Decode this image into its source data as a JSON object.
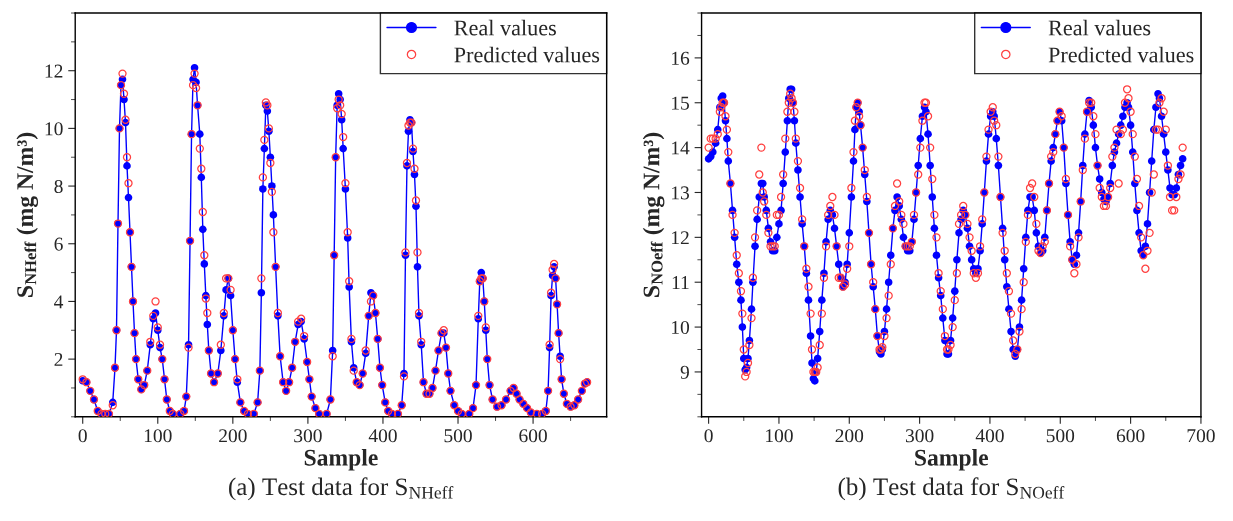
{
  "chart_data": [
    {
      "type": "line",
      "title": "(a) Test data for S$_{NHeff}$",
      "xlabel": "Sample",
      "ylabel": "S$_{NHeff}$ (mg N/m³)",
      "xlim": [
        -10,
        698
      ],
      "xticks": [
        0,
        100,
        200,
        300,
        400,
        500,
        600
      ],
      "ylim": [
        0,
        14
      ],
      "yticks": [
        2,
        4,
        6,
        8,
        10,
        12
      ],
      "grid": false,
      "legend": "top right",
      "marker": "circle",
      "x": [
        0,
        5,
        10,
        15,
        20,
        25,
        30,
        35,
        40,
        43,
        45,
        47,
        49,
        51,
        53,
        55,
        57,
        59,
        61,
        63,
        65,
        67,
        69,
        71,
        74,
        78,
        82,
        86,
        90,
        94,
        97,
        100,
        103,
        106,
        109,
        112,
        116,
        120,
        130,
        135,
        138,
        141,
        143,
        145,
        147,
        149,
        151,
        153,
        156,
        158,
        160,
        162,
        164,
        166,
        168,
        171,
        175,
        180,
        184,
        188,
        191,
        194,
        197,
        200,
        203,
        206,
        210,
        215,
        220,
        228,
        233,
        236,
        238,
        240,
        242,
        244,
        246,
        248,
        250,
        252,
        254,
        257,
        260,
        263,
        267,
        271,
        275,
        279,
        283,
        287,
        291,
        295,
        299,
        302,
        305,
        310,
        315,
        325,
        330,
        333,
        335,
        337,
        339,
        341,
        343,
        345,
        347,
        350,
        353,
        355,
        358,
        361,
        365,
        369,
        373,
        377,
        381,
        384,
        387,
        390,
        393,
        396,
        399,
        403,
        407,
        412,
        420,
        425,
        428,
        430,
        432,
        434,
        436,
        438,
        440,
        442,
        444,
        446,
        448,
        451,
        454,
        458,
        462,
        466,
        470,
        474,
        478,
        481,
        484,
        487,
        490,
        495,
        500,
        505,
        515,
        520,
        524,
        527,
        529,
        531,
        533,
        535,
        537,
        539,
        542,
        546,
        552,
        558,
        564,
        570,
        574,
        578,
        582,
        587,
        592,
        597,
        605,
        612,
        617,
        620,
        622,
        624,
        626,
        628,
        630,
        632,
        634,
        636,
        638,
        641,
        645,
        650,
        655,
        660,
        665,
        669,
        672
      ],
      "series": [
        {
          "name": "Real values",
          "color": "#0000ff",
          "values": [
            1.25,
            1.2,
            0.9,
            0.6,
            0.2,
            0.1,
            0.1,
            0.1,
            0.5,
            1.7,
            3.0,
            6.7,
            10.0,
            11.5,
            11.7,
            11.0,
            10.2,
            8.7,
            7.6,
            6.4,
            5.2,
            4.0,
            2.9,
            2.0,
            1.3,
            0.95,
            1.1,
            1.6,
            2.5,
            3.4,
            3.6,
            3.0,
            2.4,
            2.0,
            1.3,
            0.6,
            0.2,
            0.1,
            0.1,
            0.2,
            0.7,
            2.5,
            6.1,
            9.8,
            11.7,
            12.1,
            11.6,
            10.8,
            9.8,
            8.3,
            6.5,
            5.3,
            4.2,
            3.2,
            2.3,
            1.5,
            1.2,
            1.5,
            2.3,
            3.5,
            4.4,
            4.8,
            4.2,
            3.0,
            2.0,
            1.2,
            0.5,
            0.2,
            0.1,
            0.1,
            0.5,
            1.6,
            4.3,
            7.9,
            9.3,
            10.8,
            10.6,
            9.9,
            9.0,
            8.0,
            7.0,
            5.2,
            3.5,
            2.1,
            1.2,
            0.9,
            1.2,
            1.7,
            2.6,
            3.2,
            3.3,
            2.7,
            1.9,
            1.3,
            0.7,
            0.3,
            0.1,
            0.1,
            0.6,
            2.3,
            5.6,
            9.0,
            10.8,
            11.2,
            11.0,
            10.3,
            9.3,
            7.9,
            6.2,
            4.5,
            2.6,
            1.7,
            1.2,
            1.1,
            1.5,
            2.2,
            3.5,
            4.3,
            4.2,
            3.6,
            2.7,
            1.7,
            1.1,
            0.5,
            0.2,
            0.1,
            0.1,
            0.4,
            1.5,
            5.6,
            8.7,
            9.9,
            10.3,
            10.2,
            9.2,
            8.4,
            7.3,
            5.2,
            3.5,
            2.5,
            1.2,
            0.8,
            0.8,
            1.0,
            1.6,
            2.3,
            2.9,
            2.9,
            2.4,
            1.5,
            0.9,
            0.4,
            0.2,
            0.1,
            0.1,
            0.3,
            1.1,
            3.4,
            4.7,
            5.0,
            4.8,
            4.0,
            3.0,
            2.0,
            1.1,
            0.6,
            0.35,
            0.4,
            0.6,
            0.9,
            1.0,
            0.8,
            0.6,
            0.45,
            0.3,
            0.15,
            0.1,
            0.1,
            0.2,
            0.9,
            2.4,
            4.2,
            4.9,
            5.2,
            4.8,
            3.9,
            2.9,
            2.1,
            1.3,
            0.8,
            0.45,
            0.35,
            0.4,
            0.6,
            0.9,
            1.15,
            1.2
          ]
        },
        {
          "name": "Predicted values",
          "type": "scatter",
          "color": "#ff4040",
          "values": [
            1.3,
            1.2,
            0.9,
            0.6,
            0.2,
            0.1,
            0.1,
            0.1,
            0.4,
            1.7,
            3.0,
            6.7,
            10.0,
            11.5,
            11.9,
            11.2,
            10.3,
            9.0,
            8.1,
            6.4,
            5.2,
            4.0,
            2.9,
            2.0,
            1.3,
            0.95,
            1.1,
            1.6,
            2.6,
            3.5,
            4.0,
            3.1,
            2.5,
            2.0,
            1.3,
            0.6,
            0.2,
            0.1,
            0.1,
            0.2,
            0.7,
            2.4,
            6.1,
            9.8,
            11.5,
            11.9,
            11.4,
            10.8,
            9.3,
            8.6,
            7.1,
            5.6,
            4.1,
            3.6,
            2.3,
            1.5,
            1.2,
            1.5,
            2.5,
            3.6,
            4.8,
            4.8,
            4.4,
            3.0,
            2.0,
            1.3,
            0.5,
            0.2,
            0.1,
            0.1,
            0.5,
            1.6,
            4.8,
            8.3,
            9.6,
            10.9,
            10.8,
            10.0,
            8.8,
            7.8,
            6.4,
            5.2,
            3.6,
            2.1,
            1.2,
            0.9,
            1.2,
            1.7,
            2.6,
            3.3,
            3.4,
            2.8,
            1.9,
            1.3,
            0.7,
            0.3,
            0.1,
            0.1,
            0.6,
            2.1,
            5.6,
            9.0,
            10.7,
            11.0,
            10.8,
            10.5,
            9.7,
            8.1,
            6.4,
            4.7,
            2.7,
            1.6,
            1.2,
            1.1,
            1.5,
            2.3,
            3.5,
            4.0,
            4.2,
            3.6,
            2.7,
            1.7,
            1.1,
            0.5,
            0.2,
            0.1,
            0.1,
            0.4,
            1.4,
            5.7,
            8.8,
            10.1,
            10.2,
            10.2,
            9.3,
            8.6,
            7.5,
            5.7,
            3.6,
            2.6,
            1.2,
            0.8,
            0.8,
            1.0,
            1.6,
            2.3,
            2.9,
            3.0,
            2.4,
            1.5,
            0.9,
            0.4,
            0.2,
            0.1,
            0.1,
            0.3,
            1.1,
            3.5,
            4.7,
            4.8,
            4.8,
            4.0,
            3.1,
            2.0,
            1.1,
            0.6,
            0.35,
            0.4,
            0.6,
            0.9,
            1.0,
            0.8,
            0.6,
            0.45,
            0.3,
            0.15,
            0.1,
            0.1,
            0.2,
            0.9,
            2.5,
            4.3,
            5.1,
            5.3,
            4.8,
            3.9,
            2.9,
            2.0,
            1.3,
            0.8,
            0.45,
            0.35,
            0.4,
            0.6,
            0.9,
            1.15,
            1.2
          ]
        }
      ]
    },
    {
      "type": "line",
      "title": "(b) Test data for S$_{NOeff}$",
      "xlabel": "Sample",
      "ylabel": "S$_{NOeff}$ (mg N/m³)",
      "xlim": [
        -10,
        700
      ],
      "xticks": [
        0,
        100,
        200,
        300,
        400,
        500,
        600,
        700
      ],
      "ylim": [
        8,
        17
      ],
      "yticks": [
        9,
        10,
        11,
        12,
        13,
        14,
        15,
        16
      ],
      "grid": false,
      "legend": "top right",
      "marker": "circle",
      "x": [
        0,
        3,
        6,
        10,
        13,
        16,
        18,
        20,
        22,
        24,
        26,
        28,
        31,
        34,
        37,
        40,
        43,
        46,
        48,
        50,
        52,
        54,
        56,
        58,
        61,
        63,
        66,
        69,
        72,
        75,
        77,
        79,
        82,
        85,
        88,
        91,
        94,
        97,
        100,
        103,
        106,
        109,
        112,
        114,
        116,
        118,
        120,
        122,
        124,
        127,
        130,
        133,
        136,
        139,
        142,
        145,
        147,
        149,
        151,
        153,
        155,
        158,
        161,
        164,
        167,
        170,
        173,
        176,
        179,
        182,
        185,
        188,
        191,
        194,
        197,
        200,
        203,
        206,
        208,
        210,
        212,
        214,
        216,
        219,
        222,
        225,
        228,
        231,
        234,
        237,
        240,
        243,
        245,
        247,
        250,
        253,
        256,
        259,
        262,
        265,
        268,
        271,
        274,
        277,
        280,
        283,
        286,
        289,
        292,
        295,
        298,
        301,
        304,
        307,
        309,
        312,
        315,
        318,
        321,
        324,
        327,
        330,
        333,
        336,
        339,
        341,
        344,
        347,
        350,
        353,
        356,
        359,
        362,
        365,
        368,
        371,
        374,
        377,
        380,
        383,
        386,
        389,
        392,
        395,
        398,
        401,
        404,
        406,
        409,
        412,
        415,
        418,
        421,
        424,
        427,
        430,
        433,
        436,
        439,
        442,
        445,
        448,
        451,
        454,
        457,
        460,
        463,
        466,
        469,
        472,
        475,
        478,
        481,
        484,
        487,
        490,
        493,
        496,
        499,
        502,
        505,
        508,
        511,
        514,
        517,
        520,
        523,
        526,
        529,
        532,
        535,
        538,
        541,
        544,
        547,
        550,
        553,
        556,
        559,
        562,
        565,
        568,
        571,
        574,
        577,
        580,
        583,
        586,
        589,
        592,
        595,
        597,
        600,
        603,
        606,
        609,
        612,
        615,
        618,
        621,
        624,
        627,
        630,
        633,
        636,
        639,
        641,
        644,
        647,
        650,
        653,
        656,
        659,
        662,
        665,
        668,
        671,
        674
      ],
      "series": [
        {
          "name": "Real values",
          "color": "#0000ff",
          "values": [
            13.75,
            13.8,
            13.9,
            14.1,
            14.4,
            14.9,
            15.1,
            15.15,
            15.0,
            14.6,
            14.2,
            13.7,
            13.2,
            12.6,
            12.0,
            11.4,
            11.0,
            10.6,
            10.0,
            9.3,
            9.05,
            9.1,
            9.3,
            9.7,
            10.4,
            11.0,
            11.8,
            12.4,
            12.9,
            13.2,
            13.2,
            12.9,
            12.6,
            12.2,
            11.9,
            11.7,
            11.7,
            12.0,
            12.3,
            12.6,
            13.2,
            13.9,
            14.6,
            15.1,
            15.3,
            15.3,
            15.0,
            14.6,
            14.1,
            13.5,
            12.9,
            12.3,
            11.8,
            11.2,
            10.6,
            9.8,
            9.2,
            8.85,
            8.8,
            9.0,
            9.3,
            9.9,
            10.6,
            11.2,
            11.9,
            12.4,
            12.6,
            12.5,
            12.2,
            11.8,
            11.4,
            11.1,
            10.9,
            11.0,
            11.4,
            12.1,
            12.9,
            13.7,
            14.4,
            14.9,
            15.0,
            14.8,
            14.5,
            14.0,
            13.4,
            12.8,
            12.1,
            11.4,
            10.9,
            10.4,
            9.8,
            9.45,
            9.4,
            9.5,
            9.9,
            10.4,
            11.0,
            11.6,
            12.2,
            12.6,
            12.9,
            12.7,
            12.4,
            12.0,
            11.8,
            11.7,
            11.7,
            11.9,
            12.4,
            13.0,
            13.6,
            14.2,
            14.7,
            14.9,
            14.8,
            14.3,
            13.6,
            12.9,
            12.2,
            11.6,
            11.1,
            10.7,
            10.2,
            9.7,
            9.4,
            9.4,
            9.7,
            10.2,
            10.8,
            11.5,
            12.1,
            12.4,
            12.6,
            12.5,
            12.2,
            11.8,
            11.5,
            11.3,
            11.2,
            11.3,
            11.7,
            12.3,
            13.0,
            13.7,
            14.3,
            14.7,
            14.8,
            14.7,
            14.2,
            13.6,
            12.9,
            12.2,
            11.5,
            10.9,
            10.4,
            9.9,
            9.5,
            9.35,
            9.5,
            10.0,
            10.6,
            11.3,
            12.0,
            12.6,
            12.9,
            12.9,
            12.6,
            12.1,
            11.8,
            11.65,
            11.7,
            12.0,
            12.6,
            13.2,
            13.7,
            14.0,
            14.3,
            14.6,
            14.8,
            14.6,
            14.0,
            13.2,
            12.5,
            11.9,
            11.5,
            11.4,
            11.6,
            12.1,
            12.8,
            13.6,
            14.3,
            14.8,
            15.05,
            14.9,
            14.5,
            14.0,
            13.6,
            13.3,
            13.0,
            12.85,
            12.8,
            12.9,
            13.2,
            13.6,
            13.9,
            14.1,
            14.3,
            14.5,
            14.7,
            14.9,
            15.0,
            14.9,
            14.5,
            13.9,
            13.2,
            12.6,
            12.1,
            11.7,
            11.6,
            11.8,
            12.3,
            13.0,
            13.7,
            14.4,
            14.9,
            15.2,
            15.1,
            14.7,
            14.3,
            13.9,
            13.5,
            13.1,
            12.95,
            12.95,
            13.1,
            13.4,
            13.6,
            13.75
          ]
        },
        {
          "name": "Predicted values",
          "type": "scatter",
          "color": "#ff4040",
          "values": [
            14.0,
            14.2,
            14.2,
            14.2,
            14.3,
            14.8,
            14.9,
            15.0,
            15.0,
            14.7,
            14.4,
            13.9,
            13.2,
            12.5,
            12.1,
            11.6,
            11.2,
            10.8,
            10.3,
            9.5,
            8.9,
            9.0,
            9.2,
            9.6,
            10.2,
            11.1,
            12.0,
            12.6,
            13.4,
            14.0,
            13.0,
            12.8,
            12.5,
            12.1,
            11.8,
            11.8,
            11.8,
            12.5,
            12.5,
            12.9,
            13.4,
            14.2,
            14.8,
            15.0,
            15.2,
            15.1,
            15.0,
            14.8,
            14.2,
            13.7,
            13.1,
            12.4,
            11.8,
            11.3,
            10.9,
            10.3,
            9.5,
            9.0,
            9.0,
            9.0,
            9.1,
            9.6,
            10.3,
            11.1,
            11.8,
            12.5,
            12.7,
            12.9,
            12.5,
            11.8,
            11.1,
            11.1,
            10.9,
            10.95,
            11.3,
            11.8,
            13.1,
            13.9,
            14.6,
            14.9,
            15.0,
            14.7,
            14.5,
            14.0,
            13.5,
            12.9,
            12.1,
            11.4,
            11.0,
            10.4,
            9.8,
            9.5,
            9.5,
            9.55,
            9.8,
            10.2,
            10.7,
            11.4,
            12.2,
            12.7,
            13.2,
            12.8,
            12.5,
            12.3,
            11.8,
            11.8,
            11.8,
            11.9,
            12.5,
            13.0,
            13.4,
            14.0,
            14.6,
            15.0,
            15.0,
            14.7,
            14.0,
            13.3,
            12.5,
            12.0,
            11.2,
            10.8,
            10.4,
            9.8,
            9.5,
            9.5,
            9.6,
            10.0,
            10.6,
            11.2,
            12.3,
            12.5,
            12.7,
            12.5,
            12.3,
            12.0,
            11.7,
            11.2,
            11.1,
            11.2,
            11.8,
            12.4,
            13.0,
            13.8,
            14.4,
            14.8,
            14.9,
            14.6,
            14.5,
            13.8,
            12.9,
            12.1,
            11.7,
            11.2,
            10.8,
            10.3,
            9.7,
            9.4,
            9.5,
            9.9,
            10.4,
            11.0,
            11.9,
            12.5,
            13.1,
            13.2,
            12.9,
            12.3,
            11.7,
            11.65,
            11.8,
            11.9,
            12.6,
            13.2,
            13.8,
            13.9,
            14.3,
            14.6,
            14.8,
            14.7,
            14.0,
            13.3,
            12.5,
            11.8,
            11.5,
            11.2,
            11.4,
            12.0,
            12.8,
            13.5,
            14.2,
            14.8,
            15.0,
            15.0,
            14.7,
            14.3,
            13.6,
            13.1,
            12.9,
            12.7,
            12.7,
            12.9,
            13.1,
            13.8,
            14.0,
            14.4,
            13.2,
            14.3,
            14.4,
            15.0,
            15.3,
            15.1,
            14.8,
            14.3,
            13.8,
            13.3,
            12.7,
            12.0,
            11.6,
            11.3,
            11.7,
            12.1,
            13.0,
            13.4,
            14.4,
            14.4,
            15.0,
            15.1,
            14.8,
            14.4,
            13.6,
            12.9,
            12.6,
            12.6,
            12.9,
            13.3,
            13.4,
            14.0
          ]
        }
      ]
    }
  ]
}
